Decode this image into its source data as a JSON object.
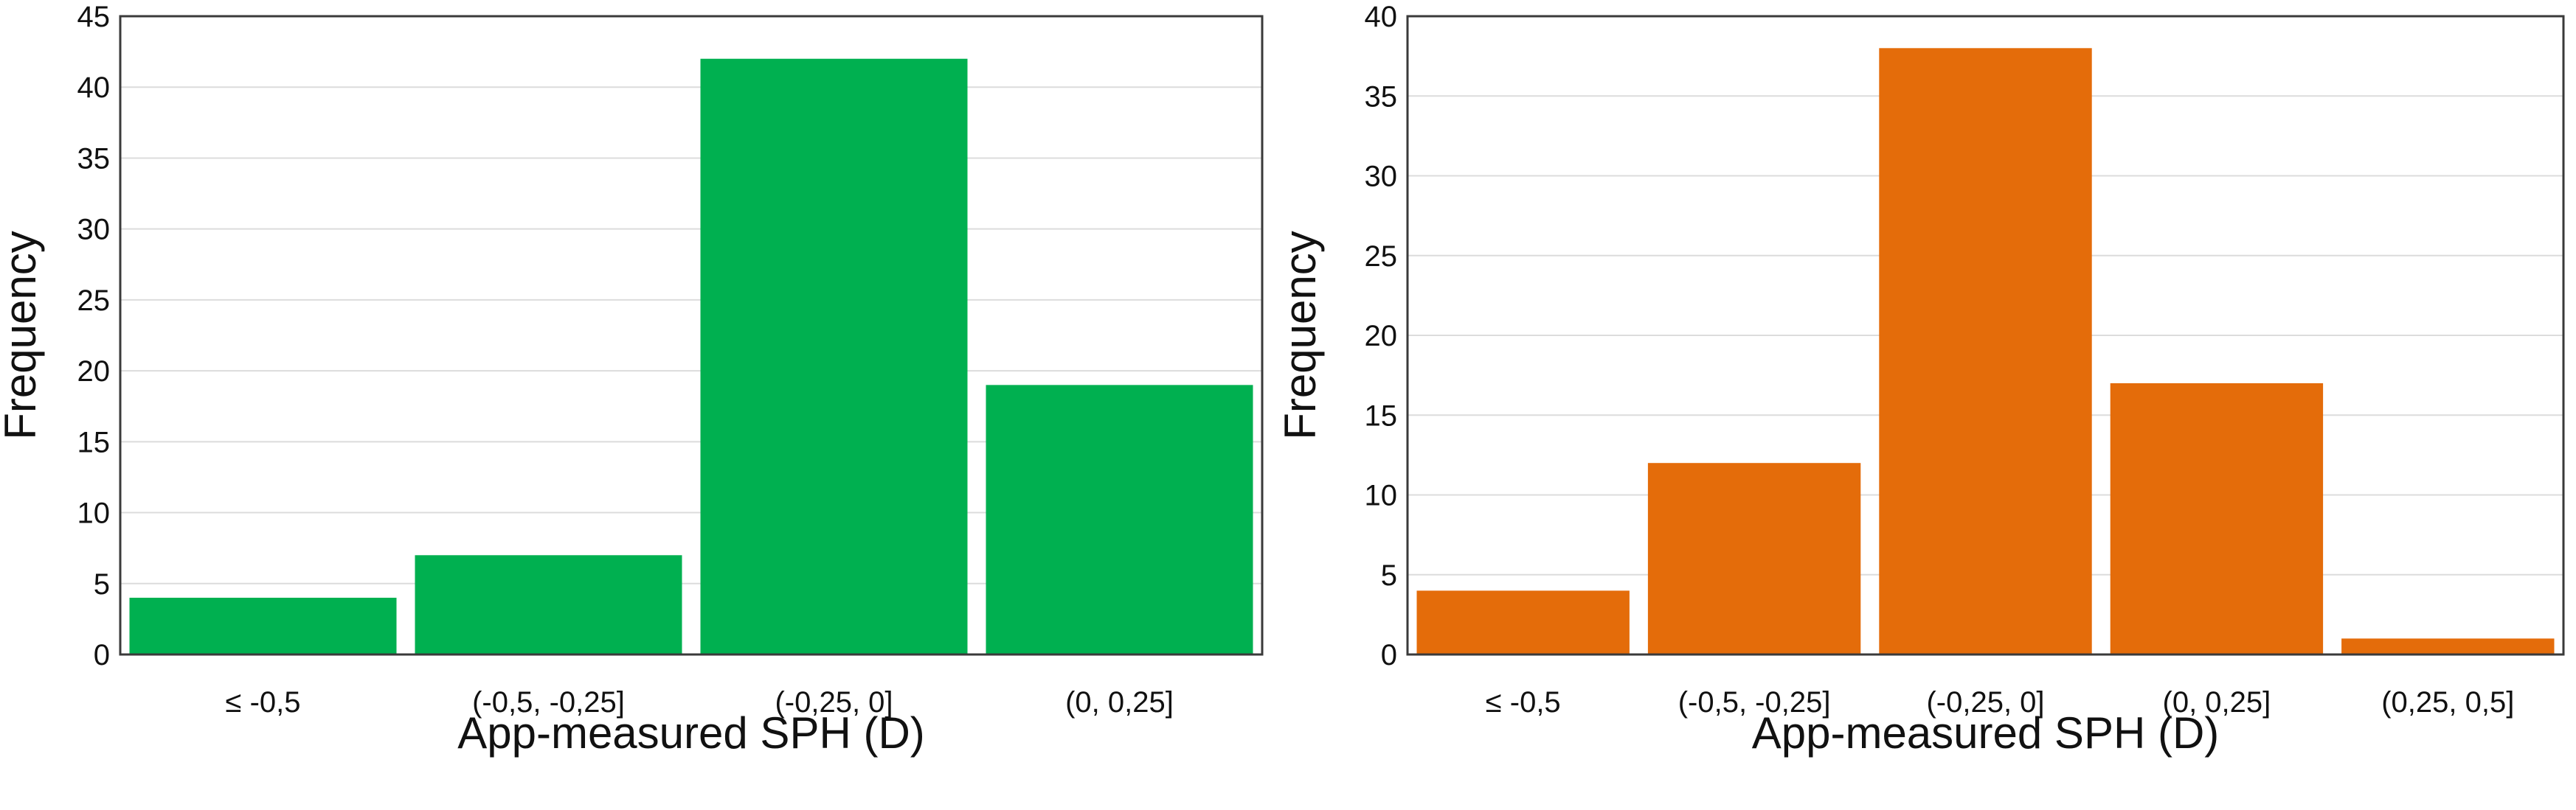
{
  "chart_data": [
    {
      "type": "bar",
      "categories": [
        "≤ -0,5",
        "(-0,5, -0,25]",
        "(-0,25, 0]",
        "(0, 0,25]"
      ],
      "values": [
        4,
        7,
        42,
        19
      ],
      "xlabel": "App-measured SPH (D)",
      "ylabel": "Frequency",
      "ylim": [
        0,
        45
      ],
      "yticks": [
        0,
        5,
        10,
        15,
        20,
        25,
        30,
        35,
        40,
        45
      ],
      "grid": true,
      "color": "#00b050"
    },
    {
      "type": "bar",
      "categories": [
        "≤ -0,5",
        "(-0,5, -0,25]",
        "(-0,25, 0]",
        "(0, 0,25]",
        "(0,25, 0,5]"
      ],
      "values": [
        4,
        12,
        38,
        17,
        1
      ],
      "xlabel": "App-measured SPH (D)",
      "ylabel": "Frequency",
      "ylim": [
        0,
        40
      ],
      "yticks": [
        0,
        5,
        10,
        15,
        20,
        25,
        30,
        35,
        40
      ],
      "grid": true,
      "color": "#e46c0a"
    }
  ]
}
